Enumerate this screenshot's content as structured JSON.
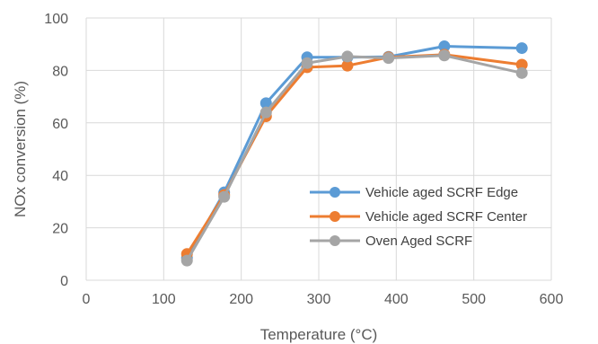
{
  "chart_data": {
    "type": "line",
    "title": "",
    "xlabel": "Temperature (°C)",
    "ylabel": "NOx conversion (%)",
    "xlim": [
      0,
      600
    ],
    "ylim": [
      0,
      100
    ],
    "xticks": [
      0,
      100,
      200,
      300,
      400,
      500,
      600
    ],
    "yticks": [
      0,
      20,
      40,
      60,
      80,
      100
    ],
    "grid": true,
    "legend_position": "inside-right",
    "series": [
      {
        "name": "Vehicle aged SCRF Edge",
        "color": "#5b9bd5",
        "x": [
          130,
          178,
          232,
          285,
          337,
          390,
          462,
          562
        ],
        "y": [
          8.5,
          33.5,
          67.5,
          85,
          85,
          85.2,
          89.2,
          88.5
        ]
      },
      {
        "name": "Vehicle aged SCRF Center",
        "color": "#ed7d31",
        "x": [
          130,
          178,
          232,
          285,
          337,
          390,
          462,
          562
        ],
        "y": [
          10,
          32.5,
          62.5,
          81.2,
          81.8,
          85,
          86,
          82.2
        ]
      },
      {
        "name": "Oven Aged SCRF",
        "color": "#a5a5a5",
        "x": [
          130,
          178,
          232,
          285,
          337,
          390,
          462,
          562
        ],
        "y": [
          7.5,
          31.8,
          64,
          82.8,
          85.3,
          84.7,
          85.7,
          79
        ]
      }
    ]
  }
}
